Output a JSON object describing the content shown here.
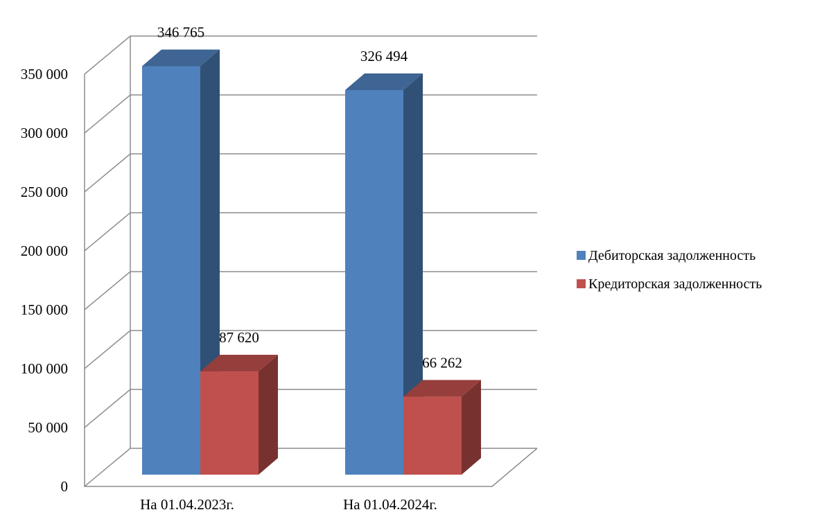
{
  "chart_data": {
    "type": "bar",
    "three_d": true,
    "categories": [
      "На 01.04.2023г.",
      "На 01.04.2024г."
    ],
    "series": [
      {
        "name": "Дебиторская задолженность",
        "values": [
          346765,
          326494
        ],
        "labels": [
          "346 765",
          "326 494"
        ],
        "color": "#4F81BD"
      },
      {
        "name": "Кредиторская задолженность",
        "values": [
          87620,
          66262
        ],
        "labels": [
          "87 620",
          "66 262"
        ],
        "color": "#C0504D"
      }
    ],
    "ylim": [
      0,
      350000
    ],
    "y_ticks": [
      0,
      50000,
      100000,
      150000,
      200000,
      250000,
      300000,
      350000
    ],
    "y_tick_labels": [
      "0",
      "50 000",
      "100 000",
      "150 000",
      "200 000",
      "250 000",
      "300 000",
      "350 000"
    ],
    "grid": true,
    "legend_position": "right"
  }
}
